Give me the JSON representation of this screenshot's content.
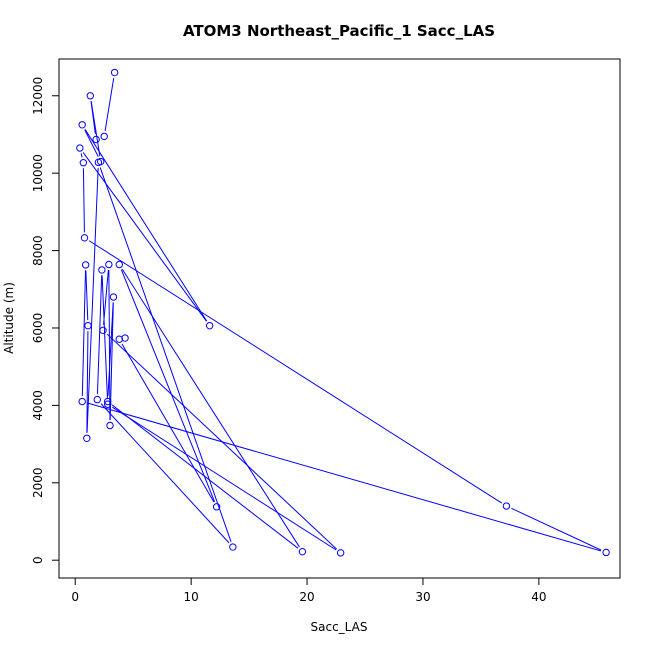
{
  "chart_data": {
    "type": "line",
    "title": "ATOM3 Northeast_Pacific_1 Sacc_LAS",
    "xlabel": "Sacc_LAS",
    "ylabel": "Altitude (m)",
    "xlim": [
      -1.4,
      47.0
    ],
    "ylim": [
      -460,
      12950
    ],
    "x_ticks": [
      0,
      10,
      20,
      30,
      40
    ],
    "y_ticks": [
      0,
      2000,
      4000,
      6000,
      8000,
      10000,
      12000
    ],
    "grid": false,
    "color": "#0000ff",
    "markers": "open-circle",
    "series": [
      {
        "points": [
          {
            "x": 3.4,
            "y": 12600
          },
          {
            "x": 2.5,
            "y": 10950
          },
          {
            "x": 1.8,
            "y": 10870
          },
          {
            "x": 1.3,
            "y": 12000
          },
          {
            "x": 2.2,
            "y": 10300
          },
          {
            "x": 0.6,
            "y": 11250
          },
          {
            "x": 11.6,
            "y": 6060
          },
          {
            "x": 0.4,
            "y": 10650
          },
          {
            "x": 0.7,
            "y": 10270
          },
          {
            "x": 0.8,
            "y": 8330
          },
          {
            "x": 37.2,
            "y": 1400
          },
          {
            "x": 45.8,
            "y": 200
          },
          {
            "x": 0.6,
            "y": 4100
          },
          {
            "x": 0.9,
            "y": 7630
          },
          {
            "x": 1.1,
            "y": 6060
          },
          {
            "x": 1.0,
            "y": 3150
          },
          {
            "x": 2.0,
            "y": 10280
          },
          {
            "x": 13.6,
            "y": 340
          },
          {
            "x": 1.9,
            "y": 4150
          },
          {
            "x": 2.3,
            "y": 7500
          },
          {
            "x": 2.8,
            "y": 4030
          },
          {
            "x": 22.9,
            "y": 190
          },
          {
            "x": 2.4,
            "y": 5940
          },
          {
            "x": 2.9,
            "y": 7640
          },
          {
            "x": 3.0,
            "y": 3480
          },
          {
            "x": 3.3,
            "y": 6800
          },
          {
            "x": 2.8,
            "y": 4100
          },
          {
            "x": 19.6,
            "y": 220
          },
          {
            "x": 3.8,
            "y": 7640
          },
          {
            "x": 12.2,
            "y": 1380
          },
          {
            "x": 3.8,
            "y": 5710
          },
          {
            "x": 4.3,
            "y": 5740
          }
        ]
      }
    ]
  }
}
